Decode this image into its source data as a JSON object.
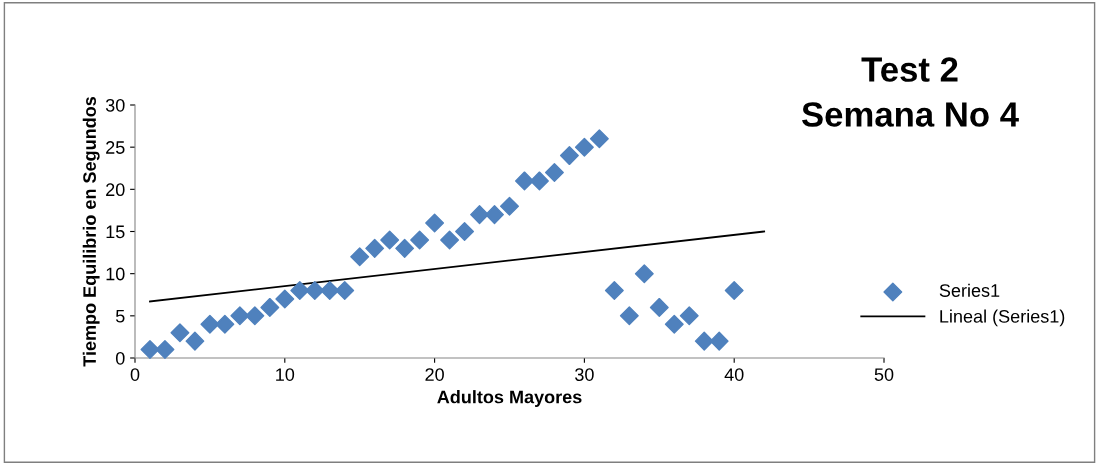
{
  "chart_data": {
    "type": "scatter",
    "title": "Test 2\nSemana No 4",
    "xlabel": "Adultos Mayores",
    "ylabel": "Tiempo Equilibrio en Segundos",
    "xlim": [
      0,
      50
    ],
    "xticks": [
      0,
      10,
      20,
      30,
      40,
      50
    ],
    "ylim": [
      0,
      30
    ],
    "yticks": [
      0,
      5,
      10,
      15,
      20,
      25,
      30
    ],
    "grid": false,
    "legend": "right",
    "series": [
      {
        "name": "Series1",
        "marker": "diamond",
        "color": "#4f81bd",
        "x": [
          1,
          2,
          3,
          4,
          5,
          6,
          7,
          8,
          9,
          10,
          11,
          12,
          13,
          14,
          15,
          16,
          17,
          18,
          19,
          20,
          21,
          22,
          23,
          24,
          25,
          26,
          27,
          28,
          29,
          30,
          31,
          32,
          33,
          34,
          35,
          36,
          37,
          38,
          39,
          40
        ],
        "values": [
          1,
          1,
          3,
          2,
          4,
          4,
          5,
          5,
          6,
          7,
          8,
          8,
          8,
          8,
          12,
          13,
          14,
          13,
          14,
          16,
          14,
          15,
          17,
          17,
          18,
          21,
          21,
          22,
          24,
          25,
          26,
          8,
          5,
          10,
          6,
          4,
          5,
          2,
          2,
          8
        ]
      },
      {
        "name": "Lineal (Series1)",
        "type": "line",
        "color": "#000000",
        "line_style": "solid",
        "x": [
          1,
          42
        ],
        "values": [
          6.7,
          15.0
        ]
      }
    ]
  }
}
